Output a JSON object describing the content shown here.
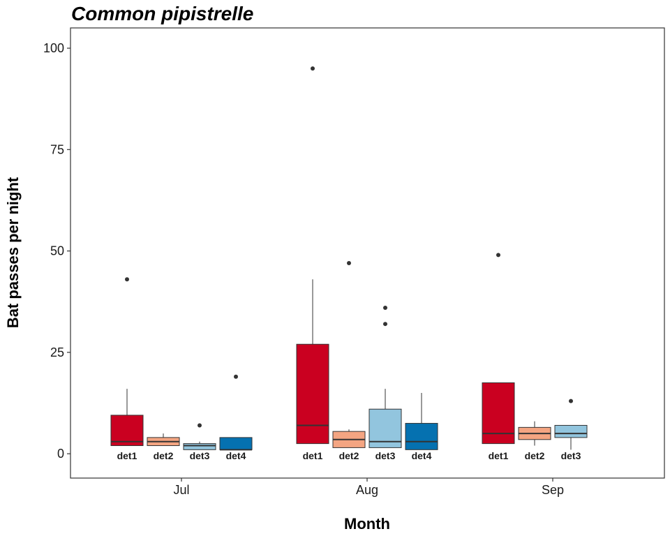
{
  "chart_data": {
    "type": "box",
    "title": "Common pipistrelle",
    "xlabel": "Month",
    "ylabel": "Bat passes per night",
    "ylim": [
      -6,
      105
    ],
    "yticks": [
      0,
      25,
      50,
      75,
      100
    ],
    "grid": false,
    "legend": "none",
    "categories": [
      "Jul",
      "Aug",
      "Sep"
    ],
    "colors": {
      "det1": "#ca0020",
      "det2": "#f4a582",
      "det3": "#92c5de",
      "det4": "#0571b0"
    },
    "groups": [
      {
        "month": "Jul",
        "boxes": [
          {
            "detector": "det1",
            "lower_whisker": 2,
            "q1": 2,
            "median": 3,
            "q3": 9.5,
            "upper_whisker": 16,
            "outliers": [
              43
            ]
          },
          {
            "detector": "det2",
            "lower_whisker": 2,
            "q1": 2,
            "median": 3,
            "q3": 4,
            "upper_whisker": 5,
            "outliers": []
          },
          {
            "detector": "det3",
            "lower_whisker": 1,
            "q1": 1,
            "median": 2,
            "q3": 2.5,
            "upper_whisker": 3,
            "outliers": [
              7
            ]
          },
          {
            "detector": "det4",
            "lower_whisker": 1,
            "q1": 1,
            "median": 1,
            "q3": 4,
            "upper_whisker": 4,
            "outliers": [
              19
            ]
          }
        ]
      },
      {
        "month": "Aug",
        "boxes": [
          {
            "detector": "det1",
            "lower_whisker": 2.5,
            "q1": 2.5,
            "median": 7,
            "q3": 27,
            "upper_whisker": 43,
            "outliers": [
              95
            ]
          },
          {
            "detector": "det2",
            "lower_whisker": 1.5,
            "q1": 1.5,
            "median": 3.5,
            "q3": 5.5,
            "upper_whisker": 6,
            "outliers": [
              47
            ]
          },
          {
            "detector": "det3",
            "lower_whisker": 1.5,
            "q1": 1.5,
            "median": 3,
            "q3": 11,
            "upper_whisker": 16,
            "outliers": [
              32,
              36
            ]
          },
          {
            "detector": "det4",
            "lower_whisker": 1,
            "q1": 1,
            "median": 3,
            "q3": 7.5,
            "upper_whisker": 15,
            "outliers": []
          }
        ]
      },
      {
        "month": "Sep",
        "boxes": [
          {
            "detector": "det1",
            "lower_whisker": 2.5,
            "q1": 2.5,
            "median": 5,
            "q3": 17.5,
            "upper_whisker": 17.5,
            "outliers": [
              49
            ]
          },
          {
            "detector": "det2",
            "lower_whisker": 2,
            "q1": 3.5,
            "median": 5,
            "q3": 6.5,
            "upper_whisker": 8,
            "outliers": []
          },
          {
            "detector": "det3",
            "lower_whisker": 1,
            "q1": 4,
            "median": 5,
            "q3": 7,
            "upper_whisker": 7,
            "outliers": [
              13
            ]
          }
        ]
      }
    ]
  }
}
